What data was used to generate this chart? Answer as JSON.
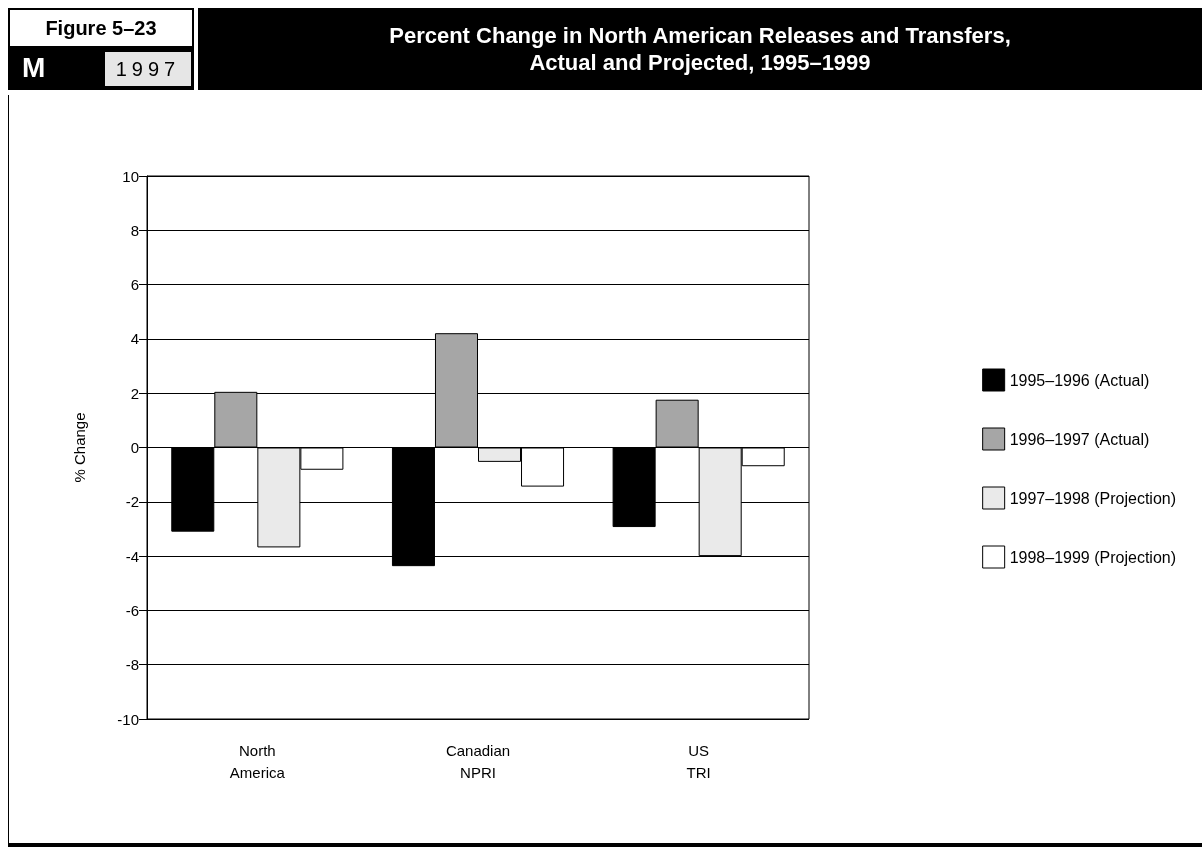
{
  "chart_data": {
    "type": "bar",
    "title": "Percent Change in North American Releases and Transfers,\nActual and Projected, 1995–1999",
    "ylabel": "% Change",
    "annotations": [
      "Figure 5–23",
      "M",
      "1997"
    ],
    "categories": [
      "North\nAmerica",
      "Canadian\nNPRI",
      "US\nTRI"
    ],
    "series": [
      {
        "name": "1995–1996 (Actual)",
        "color": "#000000",
        "values": [
          -3.1,
          -4.37,
          -2.93
        ]
      },
      {
        "name": "1996–1997 (Actual)",
        "color": "#a6a6a6",
        "values": [
          2.05,
          4.21,
          1.76
        ]
      },
      {
        "name": "1997–1998 (Projection)",
        "color": "#eaeaea",
        "values": [
          -3.68,
          -0.53,
          -4.0
        ]
      },
      {
        "name": "1998–1999 (Projection)",
        "color": "#ffffff",
        "values": [
          -0.82,
          -1.44,
          -0.69
        ]
      }
    ],
    "ylim": [
      -10,
      10
    ],
    "yticks": [
      -10,
      -8,
      -6,
      -4,
      -2,
      0,
      2,
      4,
      6,
      8,
      10
    ],
    "grid": "y",
    "legend": "right"
  }
}
